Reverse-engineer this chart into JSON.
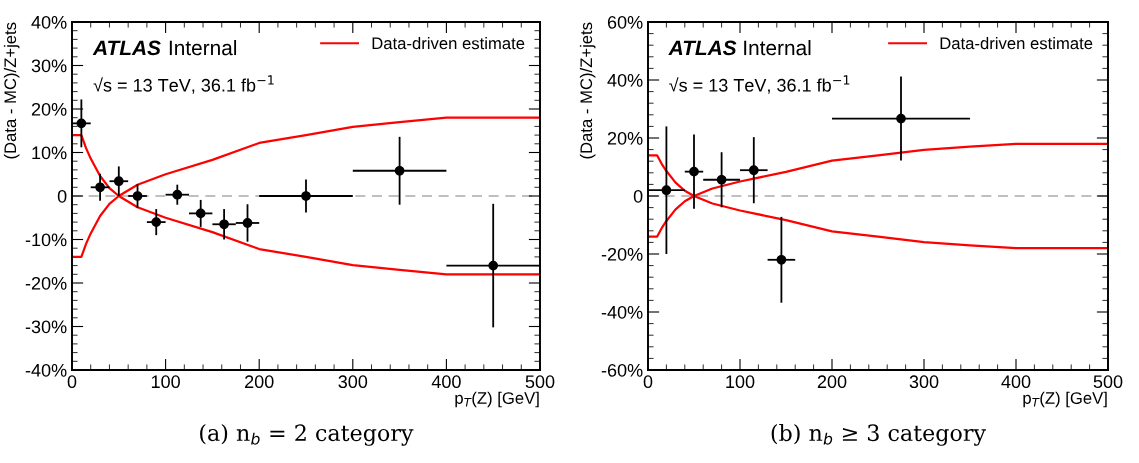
{
  "chart_data": [
    {
      "type": "scatter",
      "xlabel": "p$_{T}$(Z) [GeV]",
      "ylabel": "(Data - MC)/Z+jets",
      "annotations": [
        "ATLAS",
        "Internal",
        "√s = 13 TeV, 36.1 fb$^{−1}$",
        "(a) n$_{b}$ = 2 category"
      ],
      "xlim": [
        0,
        500
      ],
      "xticks": [
        0,
        100,
        200,
        300,
        400,
        500
      ],
      "ylim": [
        -40,
        40
      ],
      "yticks": [
        {
          "value": -40,
          "label": "-40%"
        },
        {
          "value": -30,
          "label": "-30%"
        },
        {
          "value": -20,
          "label": "-20%"
        },
        {
          "value": -10,
          "label": "-10%"
        },
        0,
        {
          "value": 10,
          "label": "10%"
        },
        {
          "value": 20,
          "label": "20%"
        },
        {
          "value": 30,
          "label": "30%"
        },
        {
          "value": 40,
          "label": "40%"
        }
      ],
      "legend": "top right",
      "ref_lines": [
        {
          "axis": "y",
          "value": 0,
          "color": "#aaaaaa",
          "line_style": "dashed"
        }
      ],
      "series": [
        {
          "type": "line",
          "name": "Data-driven estimate",
          "color": "#ff0000",
          "x": [
            0,
            10,
            15,
            20,
            30,
            40,
            50,
            70,
            100,
            150,
            200,
            250,
            300,
            350,
            400,
            500
          ],
          "values": [
            -14,
            -14,
            -11,
            -8.6,
            -4.6,
            -1.8,
            0,
            2.6,
            5,
            8.3,
            12.2,
            14,
            15.9,
            17,
            18,
            18
          ]
        },
        {
          "type": "line",
          "color": "#ff0000",
          "x": [
            0,
            10,
            15,
            20,
            30,
            40,
            50,
            70,
            100,
            150,
            200,
            250,
            300,
            350,
            400,
            500
          ],
          "values": [
            14,
            14,
            11,
            8.6,
            4.6,
            1.8,
            0,
            -2.6,
            -5,
            -8.3,
            -12.2,
            -14,
            -15.9,
            -17,
            -18,
            -18
          ]
        },
        {
          "color": "#000000",
          "marker": "circle",
          "x": [
            10,
            30,
            50,
            70,
            90,
            112.5,
            137.5,
            162.5,
            187.5,
            250,
            350,
            450
          ],
          "values": [
            16.7,
            2.0,
            3.4,
            0,
            -6,
            0.3,
            -4,
            -6.5,
            -6.2,
            0,
            5.8,
            -16
          ],
          "xerrors": [
            10,
            10,
            10,
            10,
            10,
            12.5,
            12.5,
            12.5,
            12.5,
            50,
            50,
            50
          ],
          "errors": [
            5.5,
            3.1,
            3.4,
            2.7,
            3,
            2.3,
            3.1,
            3.5,
            4.3,
            3.8,
            7.8,
            14.2
          ]
        }
      ]
    },
    {
      "type": "scatter",
      "xlabel": "p$_{T}$(Z) [GeV]",
      "ylabel": "(Data - MC)/Z+jets",
      "annotations": [
        "ATLAS",
        "Internal",
        "√s = 13 TeV, 36.1 fb$^{−1}$",
        "(b) n$_{b}$ ≥ 3 category"
      ],
      "xlim": [
        0,
        500
      ],
      "xticks": [
        0,
        100,
        200,
        300,
        400,
        500
      ],
      "ylim": [
        -60,
        60
      ],
      "yticks": [
        {
          "value": -60,
          "label": "-60%"
        },
        {
          "value": -40,
          "label": "-40%"
        },
        {
          "value": -20,
          "label": "-20%"
        },
        0,
        {
          "value": 20,
          "label": "20%"
        },
        {
          "value": 40,
          "label": "40%"
        },
        {
          "value": 60,
          "label": "60%"
        }
      ],
      "legend": "top right",
      "ref_lines": [
        {
          "axis": "y",
          "value": 0,
          "color": "#aaaaaa",
          "line_style": "dashed"
        }
      ],
      "series": [
        {
          "type": "line",
          "name": "Data-driven estimate",
          "color": "#ff0000",
          "x": [
            0,
            10,
            15,
            20,
            30,
            40,
            50,
            70,
            100,
            150,
            200,
            250,
            300,
            350,
            400,
            500
          ],
          "values": [
            -14,
            -14,
            -11,
            -8.6,
            -4.6,
            -1.8,
            0,
            2.6,
            5,
            8.3,
            12.2,
            14,
            15.9,
            17,
            18,
            18
          ]
        },
        {
          "type": "line",
          "color": "#ff0000",
          "x": [
            0,
            10,
            15,
            20,
            30,
            40,
            50,
            70,
            100,
            150,
            200,
            250,
            300,
            350,
            400,
            500
          ],
          "values": [
            14,
            14,
            11,
            8.6,
            4.6,
            1.8,
            0,
            -2.6,
            -5,
            -8.3,
            -12.2,
            -14,
            -15.9,
            -17,
            -18,
            -18
          ]
        },
        {
          "color": "#000000",
          "marker": "circle",
          "x": [
            20,
            50,
            80,
            115,
            145,
            275
          ],
          "values": [
            2,
            8.4,
            5.6,
            8.9,
            -22,
            26.7
          ],
          "xerrors": [
            20,
            10,
            20,
            15,
            15,
            75
          ],
          "errors": [
            22,
            12.8,
            9.5,
            11.4,
            14.8,
            14.5
          ]
        }
      ]
    }
  ]
}
